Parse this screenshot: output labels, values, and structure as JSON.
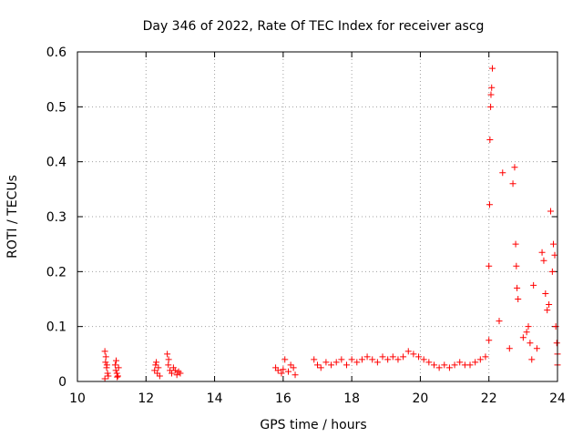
{
  "chart_data": {
    "type": "scatter",
    "title": "Day 346 of 2022, Rate Of TEC Index for receiver ascg",
    "xlabel": "GPS time / hours",
    "ylabel": "ROTI / TECUs",
    "xlim": [
      10,
      24
    ],
    "ylim": [
      0,
      0.6
    ],
    "xticks": [
      "10",
      "12",
      "14",
      "16",
      "18",
      "20",
      "22",
      "24"
    ],
    "yticks": [
      "0",
      "0.1",
      "0.2",
      "0.3",
      "0.4",
      "0.5",
      "0.6"
    ],
    "grid": true,
    "marker": "+",
    "color": "#ff0000",
    "series": [
      {
        "x": [
          10.8,
          10.82,
          10.85,
          10.88,
          10.9,
          10.8,
          10.83,
          10.86,
          11.1,
          11.12,
          11.15,
          11.18,
          11.2,
          11.13,
          11.16,
          12.25,
          12.28,
          12.3,
          12.33,
          12.36,
          12.4,
          12.62,
          12.65,
          12.7,
          12.75,
          12.8,
          12.85,
          12.9,
          12.95,
          13.0,
          12.66,
          15.78,
          15.85,
          15.95,
          16.05,
          16.15,
          16.22,
          16.3,
          16.35,
          16.0,
          16.9,
          17.0,
          17.1,
          17.25,
          17.4,
          17.55,
          17.7,
          17.85,
          18.0,
          18.15,
          18.3,
          18.45,
          18.6,
          18.75,
          18.9,
          19.05,
          19.2,
          19.35,
          19.5,
          19.65,
          19.8,
          19.95,
          20.1,
          20.25,
          20.4,
          20.55,
          20.7,
          20.85,
          21.0,
          21.15,
          21.3,
          21.45,
          21.6,
          21.75,
          21.9,
          22.0,
          22.0,
          22.02,
          22.03,
          22.05,
          22.06,
          22.08,
          22.1,
          22.3,
          22.4,
          22.6,
          22.7,
          22.75,
          22.78,
          22.8,
          22.82,
          22.85,
          23.0,
          23.1,
          23.15,
          23.2,
          23.25,
          23.3,
          23.4,
          23.55,
          23.6,
          23.65,
          23.7,
          23.75,
          23.8,
          23.85,
          23.88,
          23.92,
          23.95,
          23.98,
          24.0,
          24.0
        ],
        "y": [
          0.055,
          0.035,
          0.025,
          0.015,
          0.01,
          0.005,
          0.045,
          0.03,
          0.03,
          0.02,
          0.015,
          0.01,
          0.025,
          0.038,
          0.008,
          0.02,
          0.03,
          0.035,
          0.015,
          0.025,
          0.01,
          0.05,
          0.03,
          0.02,
          0.015,
          0.025,
          0.02,
          0.012,
          0.018,
          0.015,
          0.04,
          0.025,
          0.02,
          0.015,
          0.04,
          0.018,
          0.03,
          0.025,
          0.012,
          0.022,
          0.04,
          0.03,
          0.025,
          0.035,
          0.03,
          0.035,
          0.04,
          0.03,
          0.04,
          0.035,
          0.04,
          0.045,
          0.04,
          0.035,
          0.045,
          0.04,
          0.045,
          0.04,
          0.045,
          0.055,
          0.05,
          0.045,
          0.04,
          0.035,
          0.03,
          0.025,
          0.03,
          0.025,
          0.03,
          0.035,
          0.03,
          0.03,
          0.035,
          0.04,
          0.045,
          0.075,
          0.21,
          0.322,
          0.44,
          0.5,
          0.522,
          0.535,
          0.57,
          0.11,
          0.38,
          0.06,
          0.36,
          0.39,
          0.25,
          0.21,
          0.17,
          0.15,
          0.08,
          0.09,
          0.1,
          0.07,
          0.04,
          0.175,
          0.06,
          0.235,
          0.22,
          0.16,
          0.13,
          0.14,
          0.31,
          0.2,
          0.25,
          0.23,
          0.1,
          0.07,
          0.05,
          0.03
        ]
      }
    ]
  }
}
